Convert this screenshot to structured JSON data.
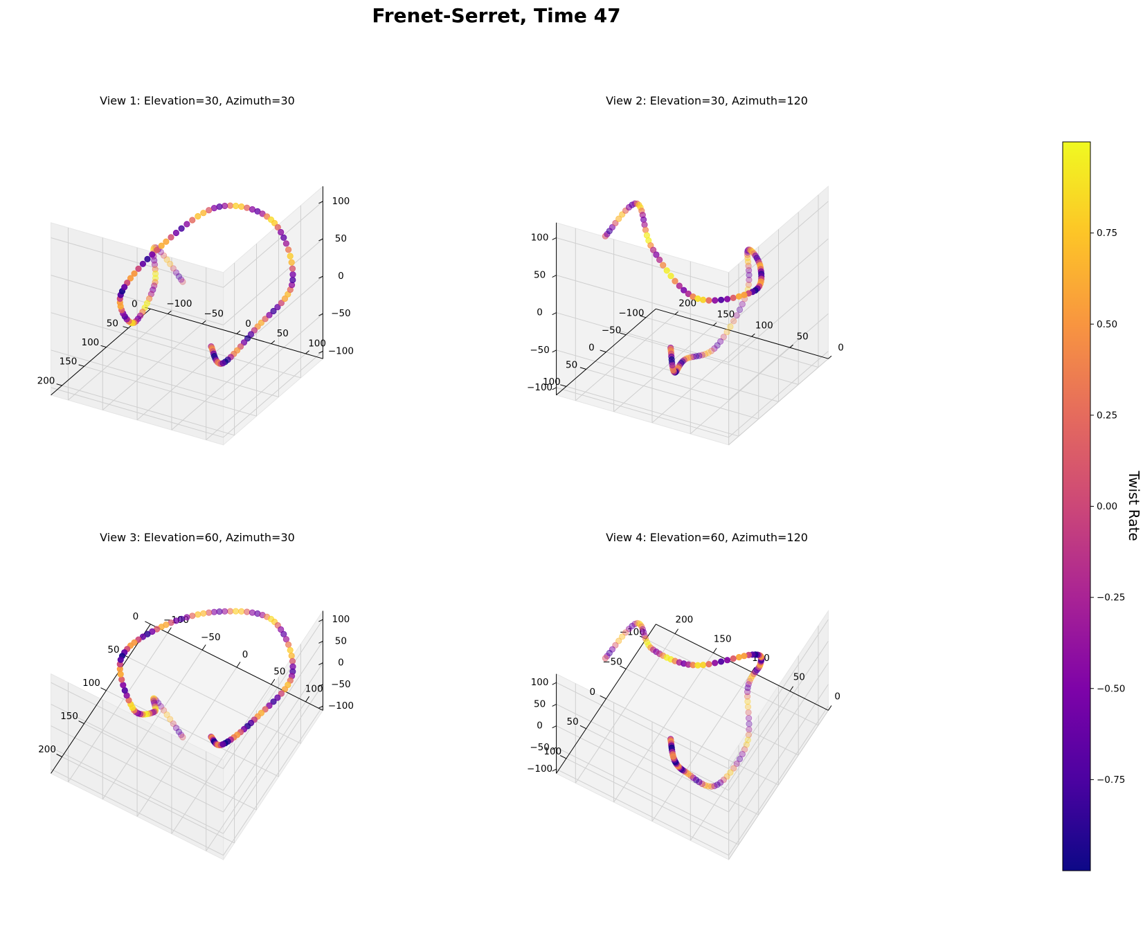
{
  "figure": {
    "title": "Frenet-Serret, Time 47"
  },
  "chart_data": [
    {
      "type": "scatter",
      "projection": "3d",
      "title": "View 1: Elevation=30, Azimuth=30",
      "view": {
        "elev": 30,
        "azim": 30
      },
      "xlim": [
        -125,
        125
      ],
      "ylim": [
        0,
        225
      ],
      "zlim": [
        -110,
        120
      ],
      "xticks": [
        -100,
        -50,
        0,
        50,
        100
      ],
      "yticks": [
        0,
        50,
        100,
        150,
        200
      ],
      "zticks": [
        -100,
        -50,
        0,
        50,
        100
      ],
      "colorbar_label": "Twist Rate",
      "series": [
        {
          "points": "curve"
        }
      ]
    },
    {
      "type": "scatter",
      "projection": "3d",
      "title": "View 2: Elevation=30, Azimuth=120",
      "view": {
        "elev": 30,
        "azim": 120
      },
      "xlim": [
        -125,
        125
      ],
      "ylim": [
        0,
        225
      ],
      "zlim": [
        -110,
        120
      ],
      "xticks": [
        -100,
        -50,
        0,
        50,
        100
      ],
      "yticks": [
        0,
        50,
        100,
        150,
        200
      ],
      "zticks": [
        -100,
        -50,
        0,
        50,
        100
      ],
      "colorbar_label": "Twist Rate",
      "series": [
        {
          "points": "curve"
        }
      ]
    },
    {
      "type": "scatter",
      "projection": "3d",
      "title": "View 3: Elevation=60, Azimuth=30",
      "view": {
        "elev": 60,
        "azim": 30
      },
      "xlim": [
        -125,
        125
      ],
      "ylim": [
        0,
        225
      ],
      "zlim": [
        -110,
        120
      ],
      "xticks": [
        -100,
        -50,
        0,
        50,
        100
      ],
      "yticks": [
        0,
        50,
        100,
        150,
        200
      ],
      "zticks": [
        -100,
        -50,
        0,
        50,
        100
      ],
      "colorbar_label": "Twist Rate",
      "series": [
        {
          "points": "curve"
        }
      ]
    },
    {
      "type": "scatter",
      "projection": "3d",
      "title": "View 4: Elevation=60, Azimuth=120",
      "view": {
        "elev": 60,
        "azim": 120
      },
      "xlim": [
        -125,
        125
      ],
      "ylim": [
        0,
        225
      ],
      "zlim": [
        -110,
        120
      ],
      "xticks": [
        -100,
        -50,
        0,
        50,
        100
      ],
      "yticks": [
        0,
        50,
        100,
        150,
        200
      ],
      "zticks": [
        -100,
        -50,
        0,
        50,
        100
      ],
      "colorbar_label": "Twist Rate",
      "series": [
        {
          "points": "curve"
        }
      ]
    }
  ],
  "colorbar": {
    "label": "Twist Rate",
    "colormap": "plasma",
    "range": [
      -1,
      1
    ],
    "ticks": [
      0.75,
      0.5,
      0.25,
      0.0,
      -0.25,
      -0.5,
      -0.75
    ],
    "tick_labels": [
      "0.75",
      "0.50",
      "0.25",
      "0.00",
      "−0.25",
      "−0.50",
      "−0.75"
    ]
  },
  "curve": {
    "point_count": 120,
    "points": [
      {
        "x": 40,
        "y": 120,
        "z": -55,
        "twist": -0.7
      },
      {
        "x": 50,
        "y": 110,
        "z": -80,
        "twist": -0.9
      },
      {
        "x": 80,
        "y": 80,
        "z": -40,
        "twist": -0.3
      },
      {
        "x": 100,
        "y": 30,
        "z": 0,
        "twist": 0.0
      },
      {
        "x": 60,
        "y": 10,
        "z": 60,
        "twist": 0.4
      },
      {
        "x": 0,
        "y": 40,
        "z": 80,
        "twist": 0.2
      },
      {
        "x": -70,
        "y": 60,
        "z": 20,
        "twist": -0.2
      },
      {
        "x": -110,
        "y": 90,
        "z": -40,
        "twist": -0.6
      },
      {
        "x": -60,
        "y": 140,
        "z": -40,
        "twist": 0.6
      },
      {
        "x": -10,
        "y": 170,
        "z": 40,
        "twist": 0.9
      },
      {
        "x": 0,
        "y": 185,
        "z": 100,
        "twist": 0.3
      },
      {
        "x": 50,
        "y": 200,
        "z": 75,
        "twist": -0.2
      }
    ]
  }
}
